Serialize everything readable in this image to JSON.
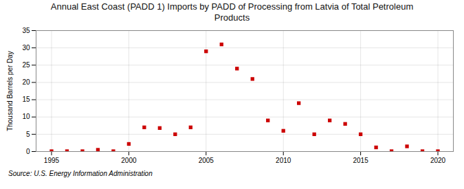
{
  "chart_data": {
    "type": "scatter",
    "title": "Annual East Coast (PADD 1) Imports by PADD of Processing from Latvia of Total Petroleum\nProducts",
    "ylabel": "Thousand Barrels per Day",
    "source": "Source: U.S. Energy Information Administration",
    "x": [
      1995,
      1996,
      1997,
      1998,
      1999,
      2000,
      2001,
      2002,
      2003,
      2004,
      2005,
      2006,
      2007,
      2008,
      2009,
      2010,
      2011,
      2012,
      2013,
      2014,
      2015,
      2016,
      2017,
      2018,
      2019,
      2020
    ],
    "values": [
      0.1,
      0.1,
      0.1,
      0.5,
      0.1,
      2.2,
      7.0,
      6.8,
      5.0,
      7.0,
      29.0,
      31.0,
      24.0,
      21.0,
      9.0,
      6.0,
      14.0,
      5.0,
      9.0,
      8.0,
      5.0,
      1.2,
      0.1,
      1.5,
      0.1,
      0.1
    ],
    "color": "#cc0000",
    "marker": "square",
    "xlim": [
      1994,
      2021
    ],
    "ylim": [
      0,
      35
    ],
    "xticks": [
      1995,
      2000,
      2005,
      2010,
      2015,
      2020
    ],
    "yticks": [
      0,
      5,
      10,
      15,
      20,
      25,
      30,
      35
    ],
    "grid": true
  }
}
